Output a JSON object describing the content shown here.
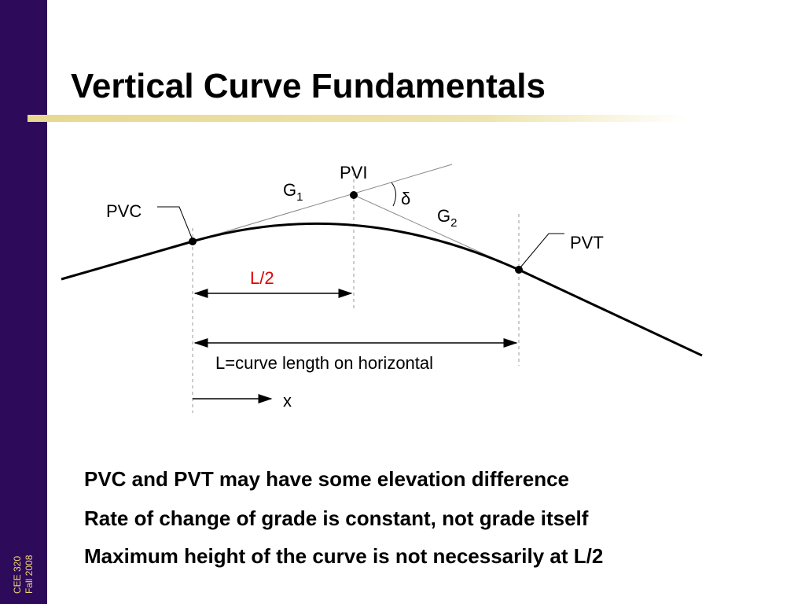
{
  "slide": {
    "title": "Vertical Curve Fundamentals",
    "sidebar": [
      "CEE 320",
      "Fall 2008"
    ],
    "diagram": {
      "pvi": "PVI",
      "pvc": "PVC",
      "pvt": "PVT",
      "g1": {
        "text": "G",
        "sub": "1"
      },
      "g2": {
        "text": "G",
        "sub": "2"
      },
      "delta": "δ",
      "half_length": "L/2",
      "length": "L=curve length on horizontal",
      "x": "x"
    },
    "bullets": [
      "PVC and PVT may have some elevation difference",
      "Rate of change of grade is constant, not grade itself",
      "Maximum height of the curve is not necessarily at L/2"
    ]
  }
}
